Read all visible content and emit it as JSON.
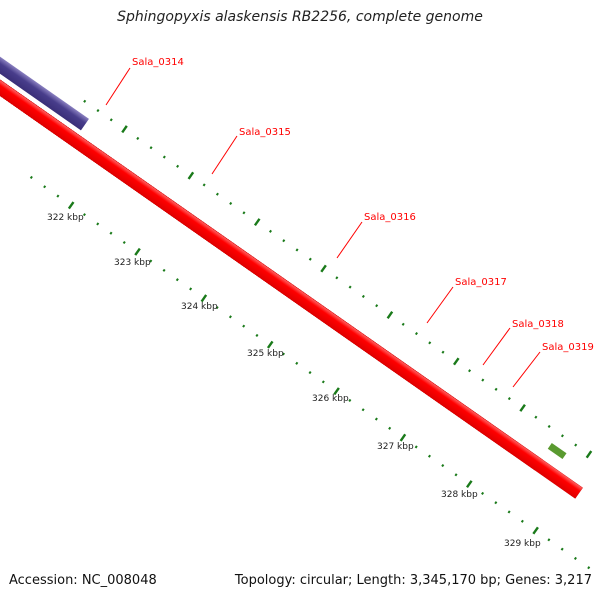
{
  "title": "Sphingopyxis alaskensis RB2256, complete genome",
  "footer": {
    "accession": "Accession: NC_008048",
    "topology": "Topology: circular; Length: 3,345,170 bp; Genes: 3,217"
  },
  "colors": {
    "forward_cds": "#ff0000",
    "reverse_cds_light": "#a6f020",
    "reverse_cds_dark": "#228b22",
    "other_feature": "#483d8b",
    "backbone": "#999999",
    "ticks": "#1a7a1a",
    "label": "#ff0000"
  },
  "scale": {
    "ticks": [
      "322 kbp",
      "323 kbp",
      "324 kbp",
      "325 kbp",
      "326 kbp",
      "327 kbp",
      "328 kbp",
      "329 kbp"
    ]
  },
  "genes": [
    {
      "label": "Sala_0314"
    },
    {
      "label": "Sala_0315"
    },
    {
      "label": "Sala_0316"
    },
    {
      "label": "Sala_0317"
    },
    {
      "label": "Sala_0318"
    },
    {
      "label": "Sala_0319"
    }
  ]
}
